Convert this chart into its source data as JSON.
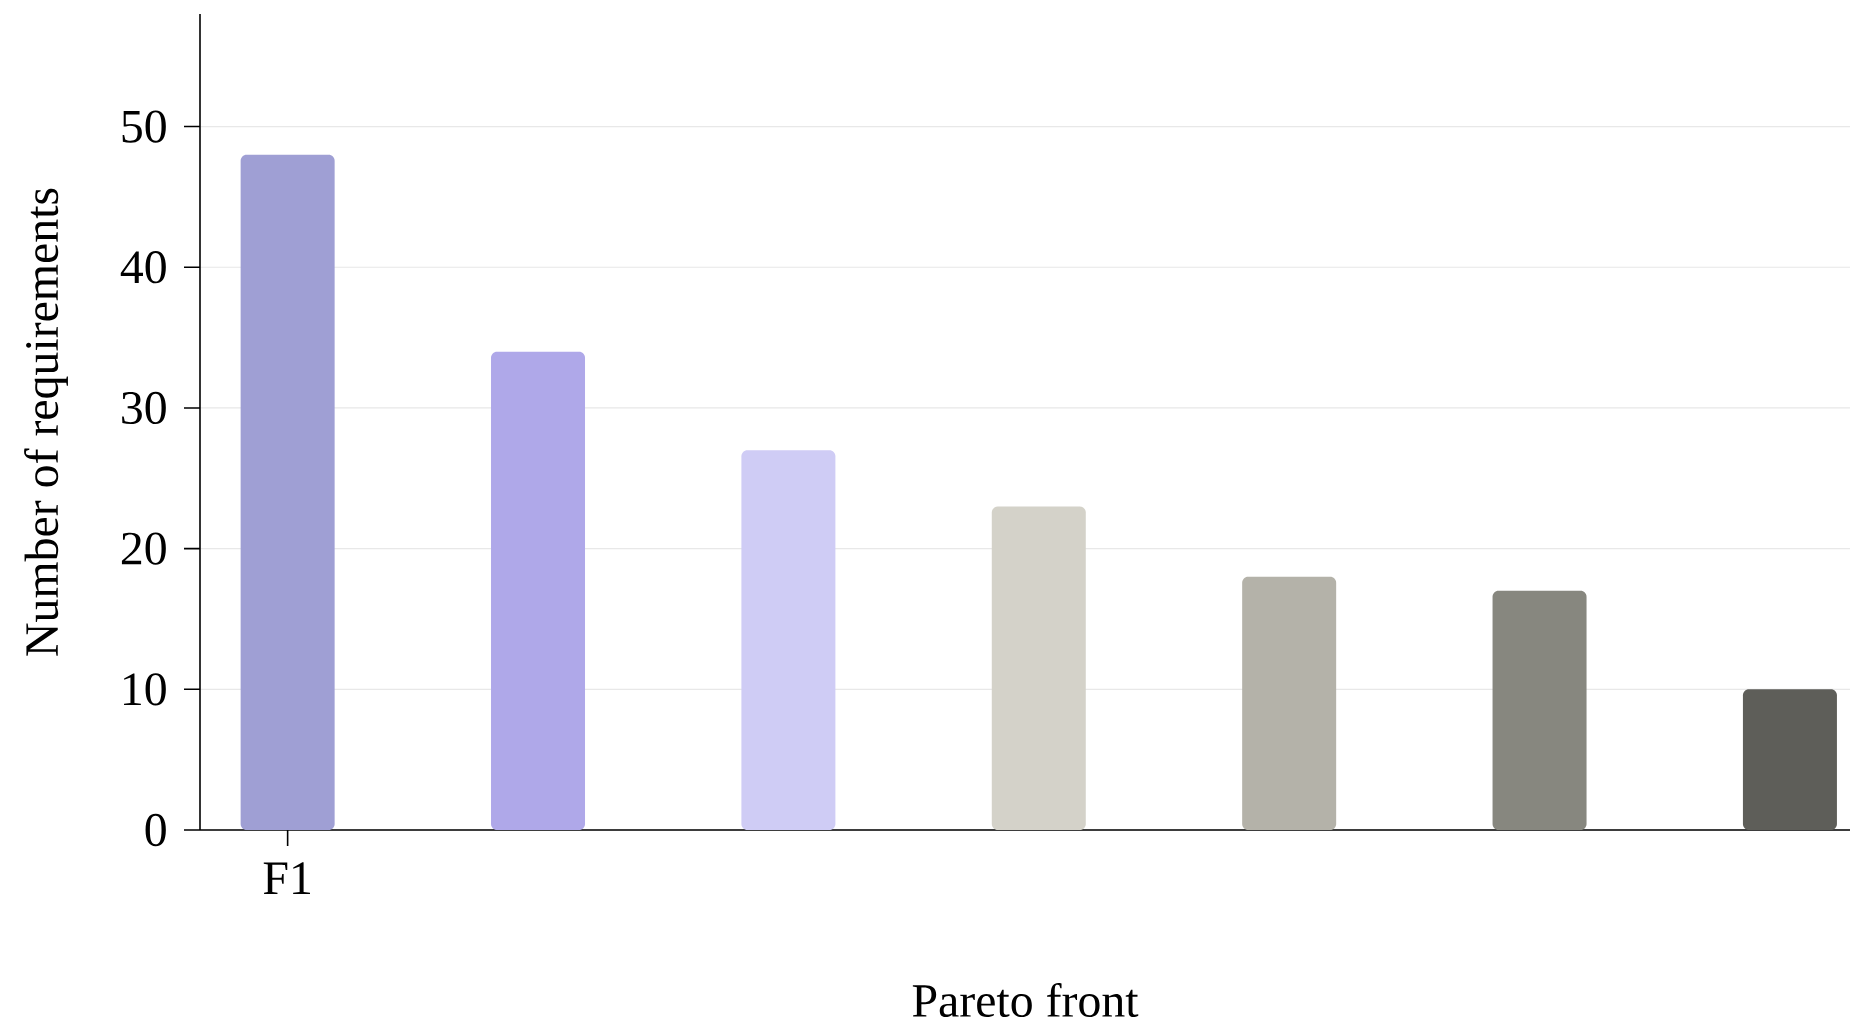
{
  "chart_data": {
    "type": "bar",
    "xlabel": "Pareto front",
    "ylabel": "Number of requirements",
    "categories": [
      "F1",
      null,
      null,
      null,
      null,
      null,
      null
    ],
    "values": [
      48,
      34,
      27,
      23,
      18,
      17,
      10
    ],
    "colors": [
      "#9f9fd4",
      "#afa8e9",
      "#cfccf5",
      "#d4d2c9",
      "#b4b2a9",
      "#87877f",
      "#5e5e59"
    ],
    "ylim": [
      0,
      58
    ],
    "yticks": [
      0,
      10,
      20,
      30,
      40,
      50
    ],
    "grid": "y"
  }
}
